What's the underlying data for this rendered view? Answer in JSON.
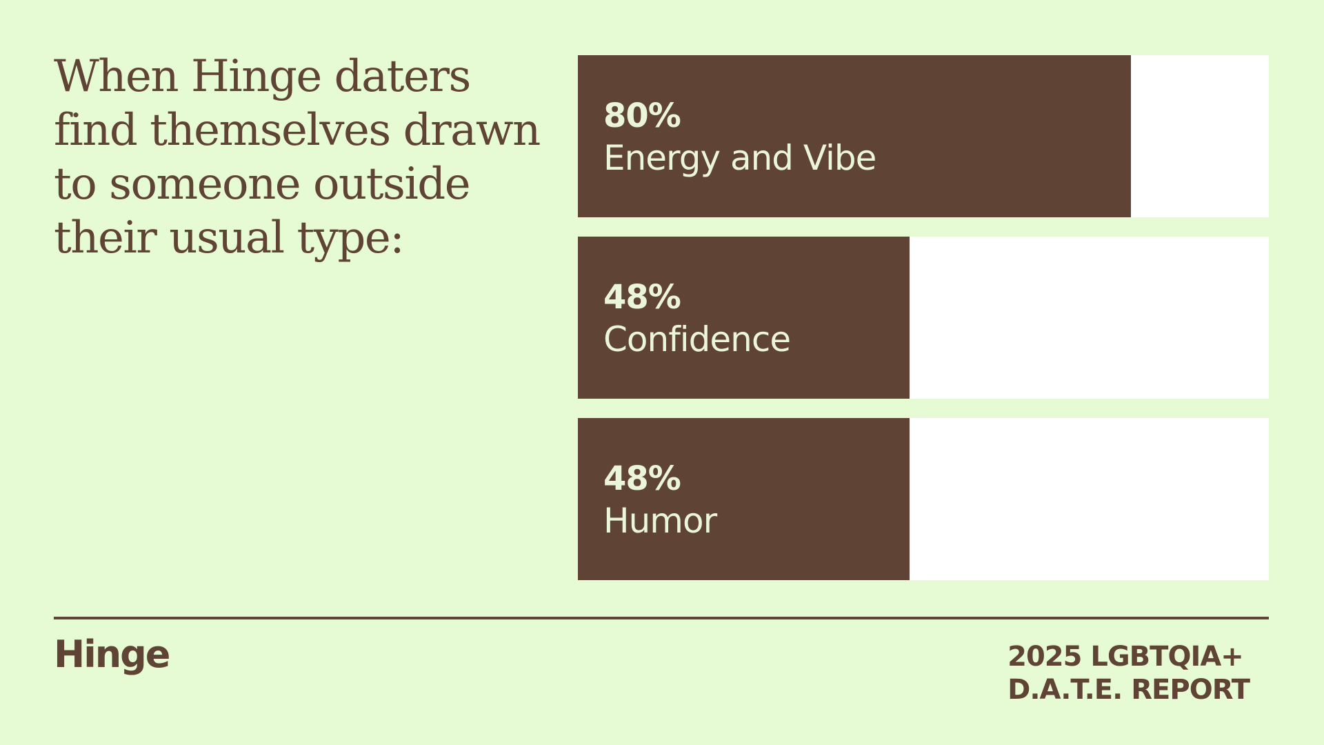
{
  "colors": {
    "background": "#E6FAD4",
    "brown": "#5F4335",
    "track": "#FFFFFF",
    "bar_text": "#EAF5D9"
  },
  "headline": {
    "lines": [
      "When Hinge daters",
      "find themselves drawn",
      "to someone outside",
      "their usual type:"
    ]
  },
  "chart_data": {
    "type": "bar",
    "orientation": "horizontal",
    "categories": [
      "Energy and Vibe",
      "Confidence",
      "Humor"
    ],
    "values": [
      80,
      48,
      48
    ],
    "value_labels": [
      "80%",
      "48%",
      "48%"
    ],
    "xlim": [
      0,
      100
    ],
    "grid": false,
    "legend": "none"
  },
  "footer": {
    "logo": "Hinge",
    "report_lines": [
      "2025 LGBTQIA+",
      "D.A.T.E. REPORT"
    ]
  }
}
